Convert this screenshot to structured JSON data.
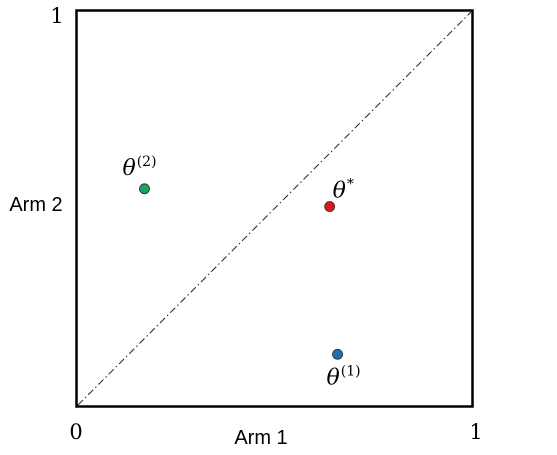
{
  "axes": {
    "x_label": "Arm 1",
    "y_label": "Arm 2",
    "x_min_tick": "0",
    "x_max_tick": "1",
    "y_max_tick": "1",
    "xlim": [
      0,
      1
    ],
    "ylim": [
      0,
      1
    ]
  },
  "diagonal": {
    "style": "dash-dot",
    "from": [
      0,
      0
    ],
    "to": [
      1,
      1
    ]
  },
  "points": [
    {
      "id": "theta-1",
      "symbol": "θ",
      "superscript": "(1)",
      "x": 0.66,
      "y": 0.13,
      "color": "#1f6fb4",
      "label_side": "below"
    },
    {
      "id": "theta-2",
      "symbol": "θ",
      "superscript": "(2)",
      "x": 0.17,
      "y": 0.55,
      "color": "#1aa362",
      "label_side": "above"
    },
    {
      "id": "theta-star",
      "symbol": "θ",
      "superscript": "*",
      "x": 0.64,
      "y": 0.505,
      "color": "#e0161b",
      "label_side": "above-right"
    }
  ]
}
